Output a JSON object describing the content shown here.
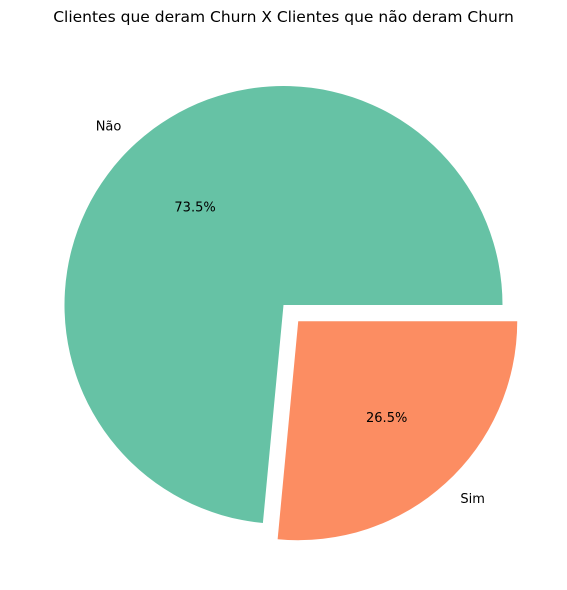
{
  "chart_data": {
    "type": "pie",
    "title": "Clientes que deram Churn X Clientes que não deram Churn",
    "labels": [
      "Não",
      "Sim"
    ],
    "values": [
      73.5,
      26.5
    ],
    "percent_labels": [
      "73.5%",
      "26.5%"
    ],
    "colors": [
      "#66c2a5",
      "#fc8d62"
    ],
    "exploded": [
      false,
      true
    ]
  }
}
